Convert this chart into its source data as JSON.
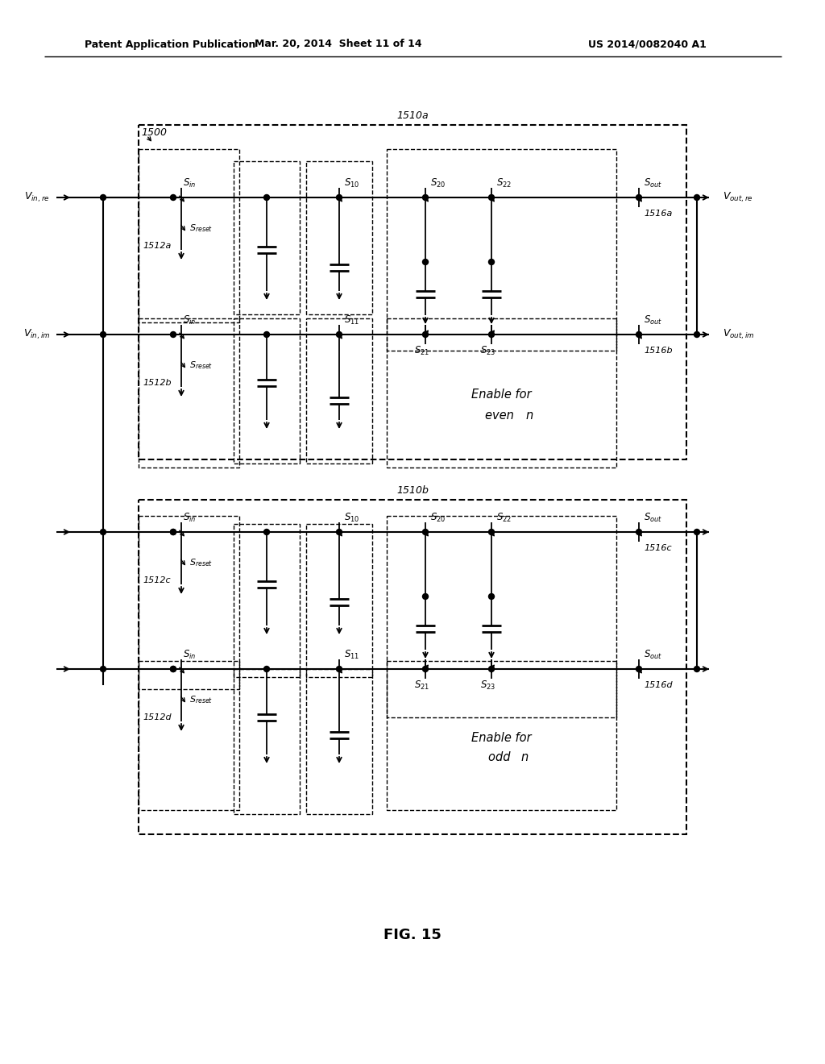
{
  "bg_color": "#ffffff",
  "header_left": "Patent Application Publication",
  "header_mid": "Mar. 20, 2014  Sheet 11 of 14",
  "header_right": "US 2014/0082040 A1",
  "fig_label": "FIG. 15",
  "lbl_1500": "1500",
  "lbl_1510a": "1510a",
  "lbl_1510b": "1510b",
  "lbl_1512a": "1512a",
  "lbl_1512b": "1512b",
  "lbl_1512c": "1512c",
  "lbl_1512d": "1512d",
  "lbl_1516a": "1516a",
  "lbl_1516b": "1516b",
  "lbl_1516c": "1516c",
  "lbl_1516d": "1516d",
  "enable_even": "Enable for\neven ",
  "enable_odd": "Enable for\nodd "
}
